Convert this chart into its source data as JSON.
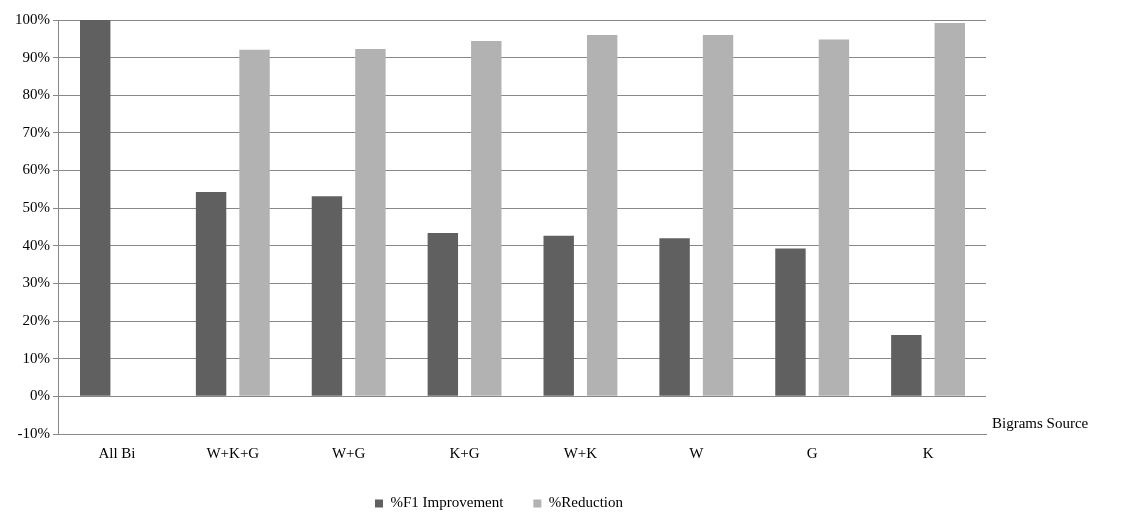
{
  "chart_data": {
    "type": "bar",
    "xlabel": "Bigrams Source",
    "categories": [
      "All Bi",
      "W+K+G",
      "W+G",
      "K+G",
      "W+K",
      "W",
      "G",
      "K"
    ],
    "series": [
      {
        "name": "%F1 Improvement",
        "color": "#606060",
        "values": [
          100,
          54.3,
          53.2,
          43.4,
          42.7,
          42,
          39.3,
          16.3
        ]
      },
      {
        "name": "%Reduction",
        "color": "#b2b2b2",
        "values": [
          0,
          92.1,
          92.3,
          94.4,
          96,
          96,
          94.8,
          99.2
        ]
      }
    ],
    "ylim": [
      -10,
      100
    ],
    "yticks": [
      {
        "value": -10,
        "label": "-10%"
      },
      {
        "value": 0,
        "label": "0%"
      },
      {
        "value": 10,
        "label": "10%"
      },
      {
        "value": 20,
        "label": "20%"
      },
      {
        "value": 30,
        "label": "30%"
      },
      {
        "value": 40,
        "label": "40%"
      },
      {
        "value": 50,
        "label": "50%"
      },
      {
        "value": 60,
        "label": "60%"
      },
      {
        "value": 70,
        "label": "70%"
      },
      {
        "value": 80,
        "label": "80%"
      },
      {
        "value": 90,
        "label": "90%"
      },
      {
        "value": 100,
        "label": "100%"
      }
    ],
    "grid": "y",
    "legend": "bottom"
  }
}
